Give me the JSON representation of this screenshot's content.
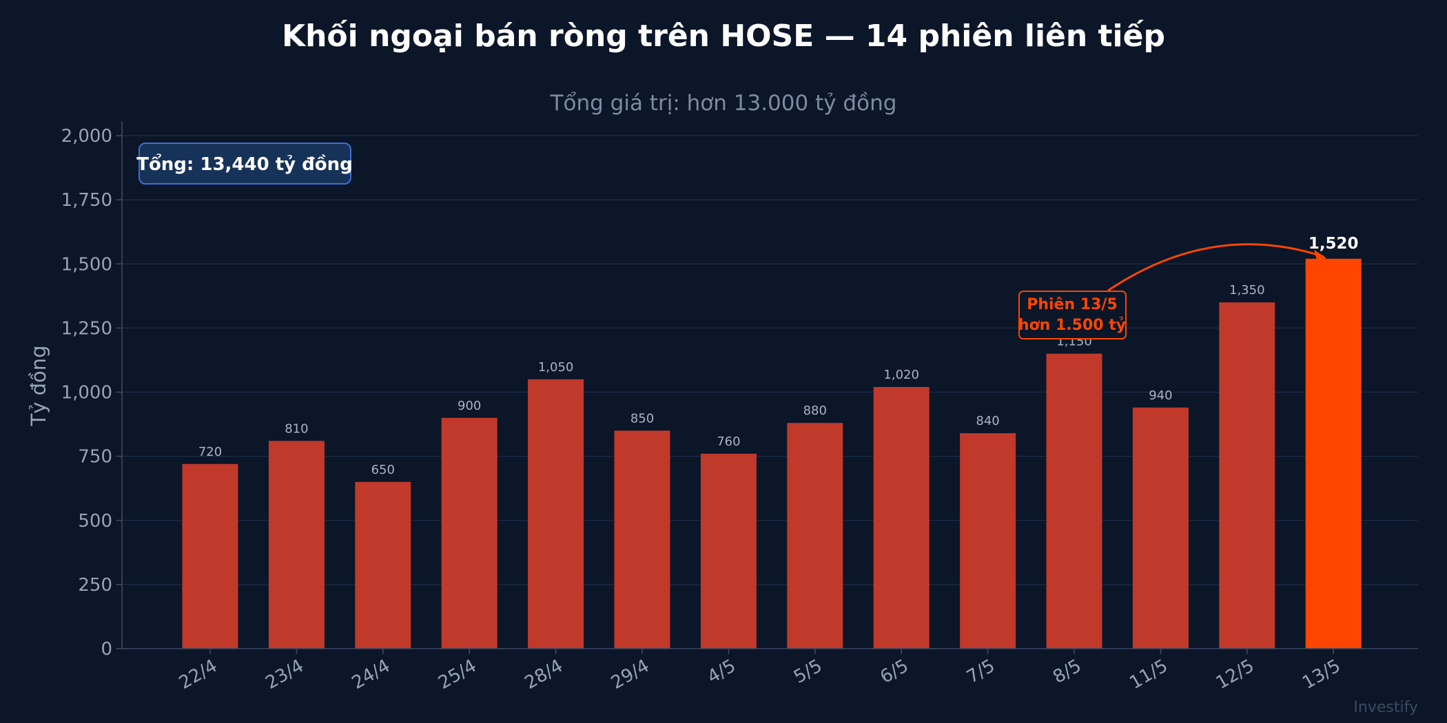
{
  "chart_data": {
    "type": "bar",
    "title": "Khối ngoại bán ròng trên HOSE — 14 phiên liên tiếp",
    "subtitle": "Tổng giá trị: hơn 13.000 tỷ đồng",
    "ylabel": "Tỷ đồng",
    "categories": [
      "22/4",
      "23/4",
      "24/4",
      "25/4",
      "28/4",
      "29/4",
      "4/5",
      "5/5",
      "6/5",
      "7/5",
      "8/5",
      "11/5",
      "12/5",
      "13/5"
    ],
    "values": [
      720,
      810,
      650,
      900,
      1050,
      850,
      760,
      880,
      1020,
      840,
      1150,
      940,
      1350,
      1520
    ],
    "value_labels": [
      "720",
      "810",
      "650",
      "900",
      "1,050",
      "850",
      "760",
      "880",
      "1,020",
      "840",
      "1,150",
      "940",
      "1,350",
      "1,520"
    ],
    "ylim": [
      0,
      2000
    ],
    "yticks": [
      0,
      250,
      500,
      750,
      1000,
      1250,
      1500,
      1750,
      2000
    ],
    "ytick_labels": [
      "0",
      "250",
      "500",
      "750",
      "1,000",
      "1,250",
      "1,500",
      "1,750",
      "2,000"
    ],
    "grid": true,
    "highlight_index": 13,
    "total_box": "Tổng: 13,440 tỷ đồng",
    "annotation": {
      "lines": [
        "Phiên 13/5",
        "hơn 1.500 tỷ"
      ],
      "target_index": 13
    },
    "watermark": "Investify",
    "colors": {
      "bar": "#c0392b",
      "highlight": "#ff4500",
      "background": "#0b1628",
      "total_box_fill": "#173259",
      "total_box_border": "#3b6fd8"
    }
  }
}
